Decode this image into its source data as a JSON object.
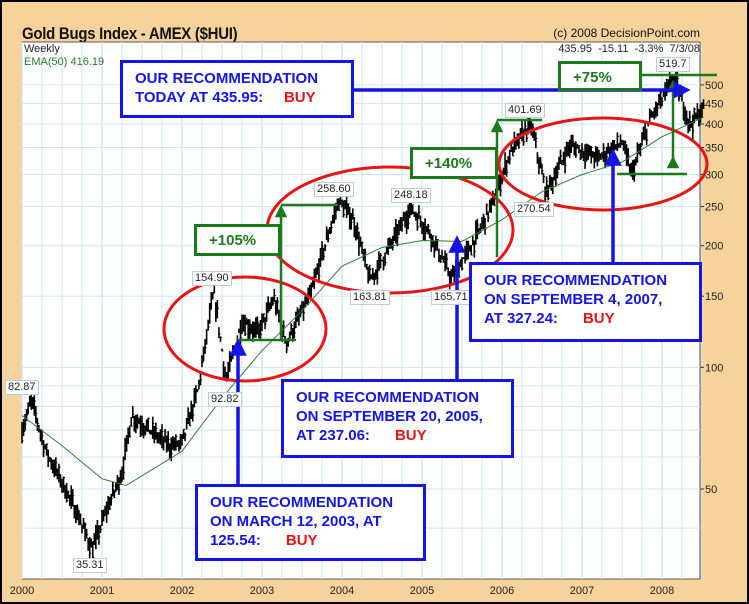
{
  "header": {
    "title": "Gold Bugs Index - AMEX ($HUI)",
    "copyright": "(c) 2008 DecisionPoint.com",
    "period": "Weekly",
    "ema_label": "EMA(50) 416.19",
    "quote": "435.95  -15.11  -3.3%  7/3/08"
  },
  "chart_data": {
    "type": "line",
    "title": "Gold Bugs Index - AMEX ($HUI)",
    "yscale": "log",
    "ylim": [
      30,
      560
    ],
    "xlim": [
      2000.0,
      2008.52
    ],
    "grid": true,
    "y_ticks": [
      50,
      100,
      150,
      200,
      250,
      300,
      350,
      400,
      450,
      500
    ],
    "x_ticks": [
      "2000",
      "2001",
      "2002",
      "2003",
      "2004",
      "2005",
      "2006",
      "2007",
      "2008"
    ],
    "series": [
      {
        "name": "$HUI",
        "style": "price-bars",
        "points": [
          [
            2000.0,
            70
          ],
          [
            2000.12,
            82.87
          ],
          [
            2000.3,
            62
          ],
          [
            2000.5,
            52
          ],
          [
            2000.68,
            44
          ],
          [
            2000.88,
            35.31
          ],
          [
            2001.05,
            44
          ],
          [
            2001.25,
            55
          ],
          [
            2001.37,
            76
          ],
          [
            2001.6,
            70
          ],
          [
            2001.85,
            64
          ],
          [
            2002.0,
            65
          ],
          [
            2002.2,
            88
          ],
          [
            2002.4,
            154.9
          ],
          [
            2002.55,
            92.82
          ],
          [
            2002.75,
            130
          ],
          [
            2002.95,
            122
          ],
          [
            2003.15,
            148
          ],
          [
            2003.3,
            115
          ],
          [
            2003.6,
            150
          ],
          [
            2003.8,
            205
          ],
          [
            2003.96,
            258.6
          ],
          [
            2004.15,
            230
          ],
          [
            2004.35,
            163.81
          ],
          [
            2004.6,
            200
          ],
          [
            2004.86,
            248.18
          ],
          [
            2005.1,
            215
          ],
          [
            2005.37,
            165.71
          ],
          [
            2005.65,
            205
          ],
          [
            2005.9,
            260
          ],
          [
            2006.1,
            340
          ],
          [
            2006.36,
            401.69
          ],
          [
            2006.5,
            300
          ],
          [
            2006.55,
            270.54
          ],
          [
            2006.85,
            355
          ],
          [
            2007.2,
            330
          ],
          [
            2007.5,
            362
          ],
          [
            2007.62,
            300
          ],
          [
            2007.85,
            410
          ],
          [
            2008.15,
            519.7
          ],
          [
            2008.35,
            400
          ],
          [
            2008.52,
            435.95
          ]
        ]
      },
      {
        "name": "EMA(50)",
        "style": "line",
        "color": "#3a7a3a",
        "points": [
          [
            2000.0,
            76
          ],
          [
            2000.5,
            64
          ],
          [
            2001.0,
            53
          ],
          [
            2001.3,
            51
          ],
          [
            2001.7,
            57
          ],
          [
            2002.0,
            62
          ],
          [
            2002.5,
            84
          ],
          [
            2003.0,
            110
          ],
          [
            2003.5,
            138
          ],
          [
            2004.0,
            178
          ],
          [
            2004.5,
            198
          ],
          [
            2005.0,
            206
          ],
          [
            2005.5,
            205
          ],
          [
            2006.0,
            232
          ],
          [
            2006.5,
            272
          ],
          [
            2007.0,
            300
          ],
          [
            2007.5,
            322
          ],
          [
            2008.0,
            372
          ],
          [
            2008.52,
            416.19
          ]
        ]
      }
    ],
    "annotations": [
      "82.87",
      "35.31",
      "154.90",
      "92.82",
      "258.60",
      "163.81",
      "248.18",
      "165.71",
      "270.54",
      "401.69",
      "519.7"
    ]
  },
  "callouts": {
    "today": {
      "line1": "OUR RECOMMENDATION",
      "line2": "TODAY AT 435.95:",
      "buy": "BUY"
    },
    "sep2007": {
      "line1": "OUR RECOMMENDATION",
      "line2": "ON SEPTEMBER 4, 2007,",
      "line3": "AT 327.24:",
      "buy": "BUY"
    },
    "sep2005": {
      "line1": "OUR RECOMMENDATION",
      "line2": "ON SEPTEMBER 20, 2005,",
      "line3": "AT 237.06:",
      "buy": "BUY"
    },
    "mar2003": {
      "line1": "OUR RECOMMENDATION",
      "line2": "ON MARCH 12, 2003, AT",
      "line3": "125.54:",
      "buy": "BUY"
    }
  },
  "gains": {
    "g1": "+105%",
    "g2": "+140%",
    "g3": "+75%"
  },
  "colors": {
    "callout": "#1414e6",
    "buy": "#e61414",
    "gain": "#1c7a1c",
    "ellipse": "#e61414",
    "background": "#F6D39B",
    "grid": "#cde6f2"
  }
}
